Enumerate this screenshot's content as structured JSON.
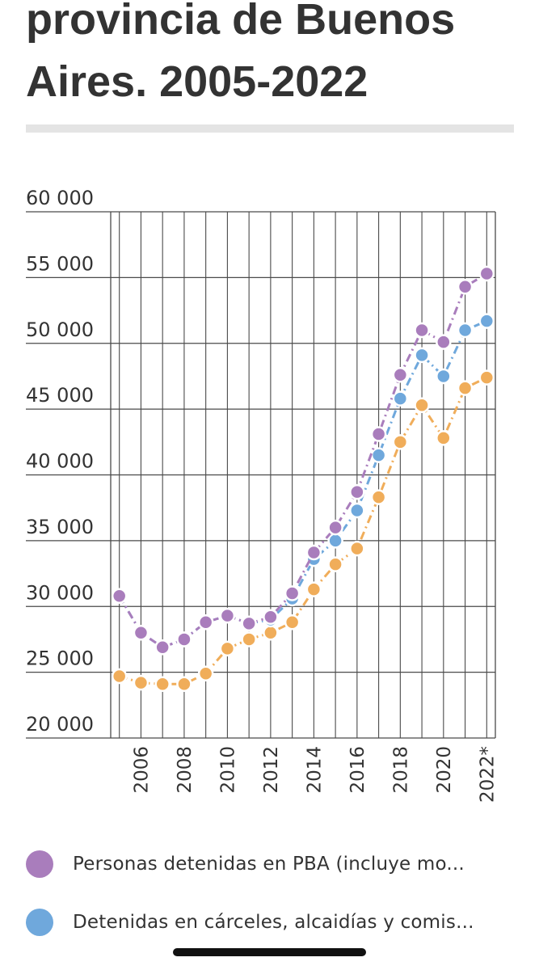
{
  "title_lines": [
    "provincia de Buenos",
    "Aires. 2005-2022"
  ],
  "colors": {
    "series_purple": "#a97dbc",
    "series_blue": "#6fa8dc",
    "series_orange": "#f0ad5a",
    "grid": "#4a4a4a"
  },
  "legend": [
    {
      "label": "Personas detenidas en PBA (incluye mo..."
    },
    {
      "label": "Detenidas en cárceles, alcaidías y comis..."
    }
  ],
  "chart_data": {
    "type": "line",
    "title": "provincia de Buenos Aires. 2005-2022",
    "x": [
      2005,
      2006,
      2007,
      2008,
      2009,
      2010,
      2011,
      2012,
      2013,
      2014,
      2015,
      2016,
      2017,
      2018,
      2019,
      2020,
      2021,
      2022
    ],
    "x_tick_labels": [
      "2006",
      "2008",
      "2010",
      "2012",
      "2014",
      "2016",
      "2018",
      "2020",
      "2022*"
    ],
    "x_tick_values": [
      2006,
      2008,
      2010,
      2012,
      2014,
      2016,
      2018,
      2020,
      2022
    ],
    "y_tick_labels": [
      "60 000",
      "55 000",
      "50 000",
      "45 000",
      "40 000",
      "35 000",
      "30 000",
      "25 000",
      "20 000"
    ],
    "y_tick_values": [
      60000,
      55000,
      50000,
      45000,
      40000,
      35000,
      30000,
      25000,
      20000
    ],
    "ylim": [
      20000,
      60000
    ],
    "xlim": [
      2004.6,
      2022.4
    ],
    "grid": true,
    "series": [
      {
        "name": "Personas detenidas en PBA (incluye mo...",
        "color": "#a97dbc",
        "values": [
          30800,
          28000,
          26900,
          27500,
          28800,
          29300,
          28700,
          29200,
          31000,
          34100,
          36000,
          38700,
          43100,
          47600,
          51000,
          50100,
          54300,
          55300
        ]
      },
      {
        "name": "Detenidas en cárceles, alcaidías y comis...",
        "color": "#6fa8dc",
        "values": [
          30800,
          28000,
          26900,
          27500,
          28800,
          29300,
          28700,
          29000,
          30600,
          33600,
          35000,
          37300,
          41500,
          45800,
          49100,
          47500,
          51000,
          51700
        ]
      },
      {
        "name": "",
        "color": "#f0ad5a",
        "values": [
          24700,
          24200,
          24100,
          24100,
          24900,
          26800,
          27500,
          28000,
          28800,
          31300,
          33200,
          34400,
          38300,
          42500,
          45300,
          42800,
          46600,
          47400
        ]
      }
    ]
  }
}
